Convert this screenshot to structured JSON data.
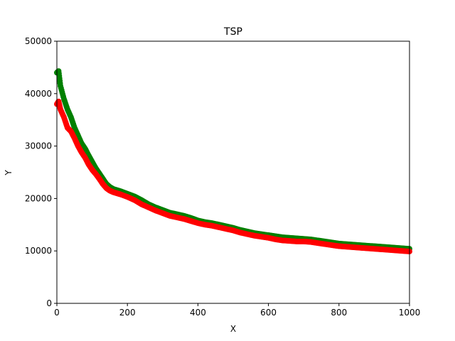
{
  "chart_data": {
    "type": "scatter",
    "title": "TSP",
    "xlabel": "X",
    "ylabel": "Y",
    "xlim": [
      0,
      1000
    ],
    "ylim": [
      0,
      50000
    ],
    "x_ticks": [
      "0",
      "200",
      "400",
      "600",
      "800",
      "1000"
    ],
    "y_ticks": [
      "0",
      "10000",
      "20000",
      "30000",
      "40000",
      "50000"
    ],
    "grid": false,
    "legend": "none",
    "series": [
      {
        "color": "#008000",
        "x": [
          0,
          5,
          10,
          20,
          30,
          40,
          50,
          60,
          70,
          80,
          90,
          100,
          110,
          120,
          130,
          140,
          150,
          160,
          170,
          180,
          200,
          220,
          240,
          260,
          280,
          300,
          320,
          340,
          360,
          380,
          400,
          420,
          440,
          460,
          480,
          500,
          520,
          540,
          560,
          580,
          600,
          620,
          640,
          660,
          680,
          700,
          720,
          740,
          760,
          780,
          800,
          820,
          840,
          860,
          880,
          900,
          920,
          940,
          960,
          980,
          1000
        ],
        "y": [
          44000,
          44300,
          41500,
          39000,
          37000,
          35500,
          33500,
          32000,
          30500,
          29500,
          28200,
          27000,
          25800,
          24800,
          23800,
          22800,
          22200,
          21800,
          21600,
          21400,
          20900,
          20400,
          19700,
          18900,
          18300,
          17800,
          17300,
          17000,
          16700,
          16300,
          15800,
          15500,
          15300,
          15000,
          14700,
          14400,
          14000,
          13700,
          13400,
          13200,
          13000,
          12800,
          12600,
          12500,
          12400,
          12300,
          12200,
          12000,
          11800,
          11600,
          11400,
          11300,
          11200,
          11100,
          11000,
          10900,
          10800,
          10700,
          10600,
          10500,
          10400
        ]
      },
      {
        "color": "#ff0000",
        "x": [
          0,
          5,
          10,
          20,
          30,
          40,
          50,
          60,
          70,
          80,
          90,
          100,
          110,
          120,
          130,
          140,
          150,
          160,
          170,
          180,
          200,
          220,
          240,
          260,
          280,
          300,
          320,
          340,
          360,
          380,
          400,
          420,
          440,
          460,
          480,
          500,
          520,
          540,
          560,
          580,
          600,
          620,
          640,
          660,
          680,
          700,
          720,
          740,
          760,
          780,
          800,
          820,
          840,
          860,
          880,
          900,
          920,
          940,
          960,
          980,
          1000
        ],
        "y": [
          38000,
          38500,
          37000,
          35500,
          33500,
          32800,
          31500,
          30000,
          28800,
          27800,
          26500,
          25500,
          24700,
          23800,
          22800,
          22000,
          21500,
          21200,
          21000,
          20800,
          20300,
          19700,
          18900,
          18300,
          17700,
          17200,
          16700,
          16400,
          16100,
          15700,
          15300,
          15000,
          14800,
          14500,
          14200,
          13900,
          13500,
          13200,
          12900,
          12700,
          12500,
          12200,
          12000,
          11900,
          11800,
          11800,
          11700,
          11500,
          11300,
          11100,
          10900,
          10800,
          10700,
          10600,
          10500,
          10400,
          10300,
          10200,
          10100,
          10000,
          9900
        ]
      }
    ]
  }
}
